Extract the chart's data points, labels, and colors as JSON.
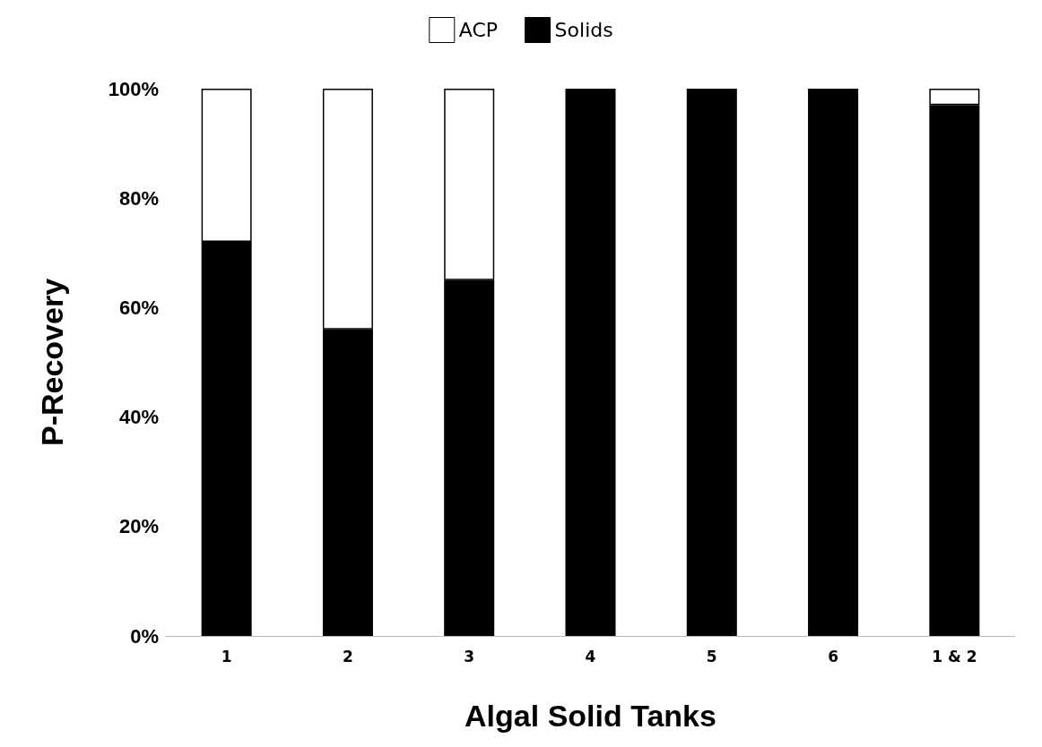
{
  "chart_data": {
    "type": "bar",
    "stacked": true,
    "xlabel": "Algal Solid Tanks",
    "ylabel": "P-Recovery",
    "categories": [
      "1",
      "2",
      "3",
      "4",
      "5",
      "6",
      "1 & 2"
    ],
    "series": [
      {
        "name": "Solids",
        "color": "#000000",
        "values": [
          72,
          56,
          65,
          100,
          100,
          100,
          97
        ]
      },
      {
        "name": "ACP",
        "color": "#ffffff",
        "values": [
          28,
          44,
          35,
          null,
          null,
          null,
          3
        ]
      }
    ],
    "ylim": [
      0,
      100
    ],
    "yticks": [
      {
        "value": 0,
        "label": "0%"
      },
      {
        "value": 20,
        "label": "20%"
      },
      {
        "value": 40,
        "label": "40%"
      },
      {
        "value": 60,
        "label": "60%"
      },
      {
        "value": 80,
        "label": "80%"
      },
      {
        "value": 100,
        "label": "100%"
      }
    ],
    "grid": false,
    "legend": "top"
  }
}
